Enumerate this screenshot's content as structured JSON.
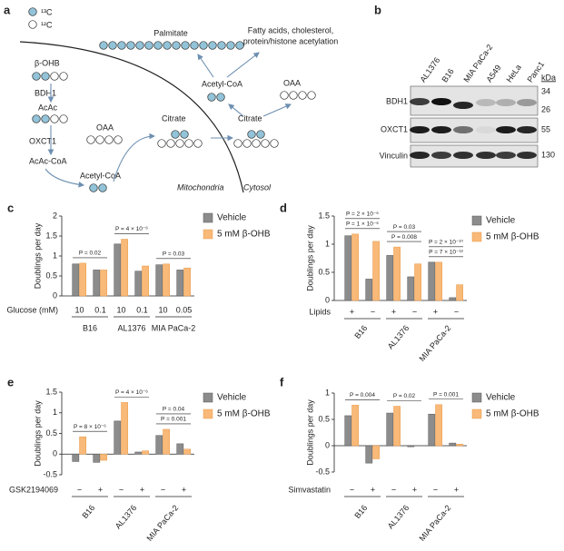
{
  "diagram": {
    "panel": "a",
    "isotope_13c": "¹³C",
    "isotope_12c": "¹²C",
    "palmitate": "Palmitate",
    "products": [
      "Fatty acids, cholesterol,",
      "protein/histone acetylation"
    ],
    "bohb": "β-OHB",
    "bdh1": "BDH1",
    "acac": "AcAc",
    "oxct1": "OXCT1",
    "acac_coa": "AcAc-CoA",
    "acetyl_coa_mito": "Acetyl-CoA",
    "oaa_mito": "OAA",
    "citrate_mito": "Citrate",
    "citrate_cyto": "Citrate",
    "oaa_cyto": "OAA",
    "acetyl_coa_cyto": "Acetyl-CoA",
    "mitochondria": "Mitochondria",
    "cytosol": "Cytosol"
  },
  "blot": {
    "panel": "b",
    "lanes": [
      "AL1376",
      "B16",
      "MIA PaCa-2",
      "A549",
      "HeLa",
      "Panc1"
    ],
    "proteins": [
      "BDH1",
      "OXCT1",
      "Vinculin"
    ],
    "unit": "kDa",
    "markers": [
      "34",
      "26",
      "55",
      "130"
    ]
  },
  "chart_data": [
    {
      "type": "bar",
      "panel": "c",
      "ylabel": "Doublings per day",
      "condition_label": "Glucose (mM)",
      "groups": [
        "B16",
        "AL1376",
        "MIA PaCa-2"
      ],
      "categories": [
        "10",
        "0.1",
        "10",
        "0.1",
        "10",
        "0.05"
      ],
      "series": [
        {
          "name": "Vehicle",
          "color": "#8c8c8c",
          "values": [
            0.8,
            0.65,
            1.3,
            0.62,
            0.78,
            0.65
          ]
        },
        {
          "name": "5 mM β-OHB",
          "color": "#f9b978",
          "values": [
            0.82,
            0.65,
            1.42,
            0.75,
            0.8,
            0.7
          ]
        }
      ],
      "annotations": [
        [
          "P = 0.02"
        ],
        [
          "P = 4 × 10⁻⁶"
        ],
        [
          "P = 0.03"
        ]
      ],
      "ylim": [
        0,
        2
      ],
      "yticks": [
        0,
        0.5,
        1,
        1.5,
        2
      ]
    },
    {
      "type": "bar",
      "panel": "d",
      "ylabel": "Doublings per day",
      "condition_label": "Lipids",
      "groups": [
        "B16",
        "AL1376",
        "MIA PaCa-2"
      ],
      "categories": [
        "+",
        "−",
        "+",
        "−",
        "+",
        "−"
      ],
      "series": [
        {
          "name": "Vehicle",
          "color": "#8c8c8c",
          "values": [
            1.15,
            0.38,
            0.8,
            0.42,
            0.68,
            0.05
          ]
        },
        {
          "name": "5 mM β-OHB",
          "color": "#f9b978",
          "values": [
            1.18,
            1.05,
            0.95,
            0.65,
            0.68,
            0.28
          ]
        }
      ],
      "annotations": [
        [
          "P = 1 × 10⁻⁶",
          "P = 2 × 10⁻⁶"
        ],
        [
          "P = 0.008",
          "P = 0.03"
        ],
        [
          "P = 7 × 10⁻¹²",
          "P = 2 × 10⁻¹⁰"
        ]
      ],
      "ylim": [
        0,
        1.5
      ],
      "yticks": [
        0,
        0.5,
        1,
        1.5
      ]
    },
    {
      "type": "bar",
      "panel": "e",
      "ylabel": "Doublings per day",
      "condition_label": "GSK2194069",
      "groups": [
        "B16",
        "AL1376",
        "MIA PaCa-2"
      ],
      "categories": [
        "−",
        "+",
        "−",
        "+",
        "−",
        "+"
      ],
      "series": [
        {
          "name": "Vehicle",
          "color": "#8c8c8c",
          "values": [
            -0.18,
            -0.2,
            0.8,
            0.05,
            0.45,
            0.25
          ]
        },
        {
          "name": "5 mM β-OHB",
          "color": "#f9b978",
          "values": [
            0.42,
            -0.15,
            1.25,
            0.08,
            0.6,
            0.12
          ]
        }
      ],
      "annotations": [
        [
          "P = 8 × 10⁻⁶"
        ],
        [
          "P = 4 × 10⁻⁶"
        ],
        [
          "P = 0.001",
          "P = 0.04"
        ]
      ],
      "ylim": [
        -0.5,
        1.5
      ],
      "yticks": [
        -0.5,
        0,
        0.5,
        1,
        1.5
      ]
    },
    {
      "type": "bar",
      "panel": "f",
      "ylabel": "Doublings per day",
      "condition_label": "Simvastatin",
      "groups": [
        "B16",
        "AL1376",
        "MIA PaCa-2"
      ],
      "categories": [
        "−",
        "+",
        "−",
        "+",
        "−",
        "+"
      ],
      "series": [
        {
          "name": "Vehicle",
          "color": "#8c8c8c",
          "values": [
            0.57,
            -0.33,
            0.62,
            -0.02,
            0.6,
            0.05
          ]
        },
        {
          "name": "5 mM β-OHB",
          "color": "#f9b978",
          "values": [
            0.77,
            -0.25,
            0.75,
            0.0,
            0.78,
            0.03
          ]
        }
      ],
      "annotations": [
        [
          "P = 0.004"
        ],
        [
          "P = 0.02"
        ],
        [
          "P = 0.001"
        ]
      ],
      "ylim": [
        -0.5,
        1
      ],
      "yticks": [
        -0.5,
        0,
        0.5,
        1
      ]
    }
  ]
}
